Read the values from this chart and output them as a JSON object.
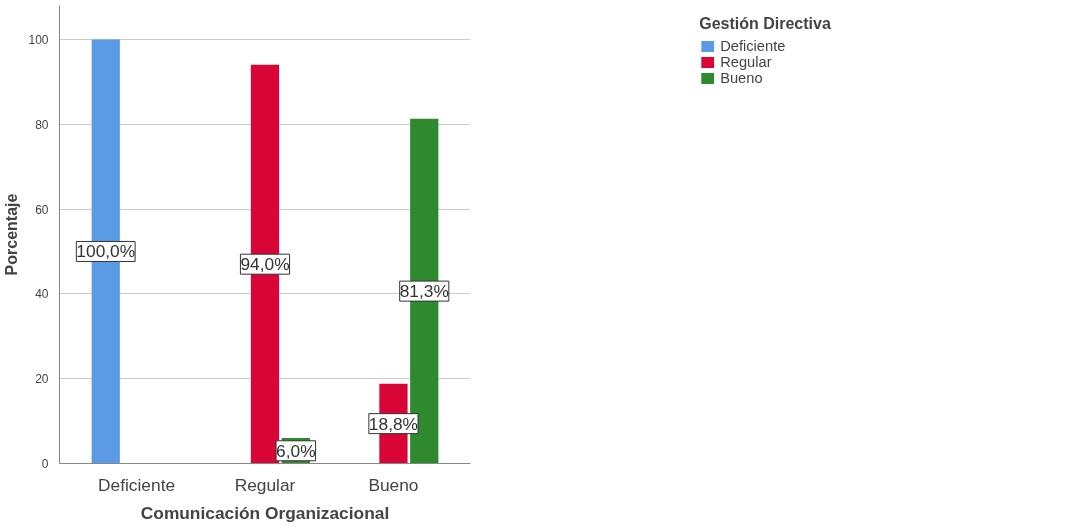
{
  "chart_data": {
    "type": "bar",
    "xlabel": "Comunicación Organizacional",
    "ylabel": "Porcentaje",
    "legend_title": "Gestión Directiva",
    "categories": [
      "Deficiente",
      "Regular",
      "Bueno"
    ],
    "series": [
      {
        "name": "Deficiente",
        "color": "#5b9be6",
        "values": [
          100.0,
          null,
          null
        ],
        "value_labels": [
          "100,0%",
          null,
          null
        ]
      },
      {
        "name": "Regular",
        "color": "#d80536",
        "values": [
          null,
          94.0,
          18.8
        ],
        "value_labels": [
          null,
          "94,0%",
          "18,8%"
        ]
      },
      {
        "name": "Bueno",
        "color": "#2f8a2f",
        "values": [
          null,
          6.0,
          81.3
        ],
        "value_labels": [
          null,
          "6,0%",
          "81,3%"
        ]
      }
    ],
    "ylim": [
      0,
      108
    ],
    "yticks": [
      0,
      20,
      40,
      60,
      80,
      100
    ],
    "grid": "y",
    "legend": "top right"
  }
}
